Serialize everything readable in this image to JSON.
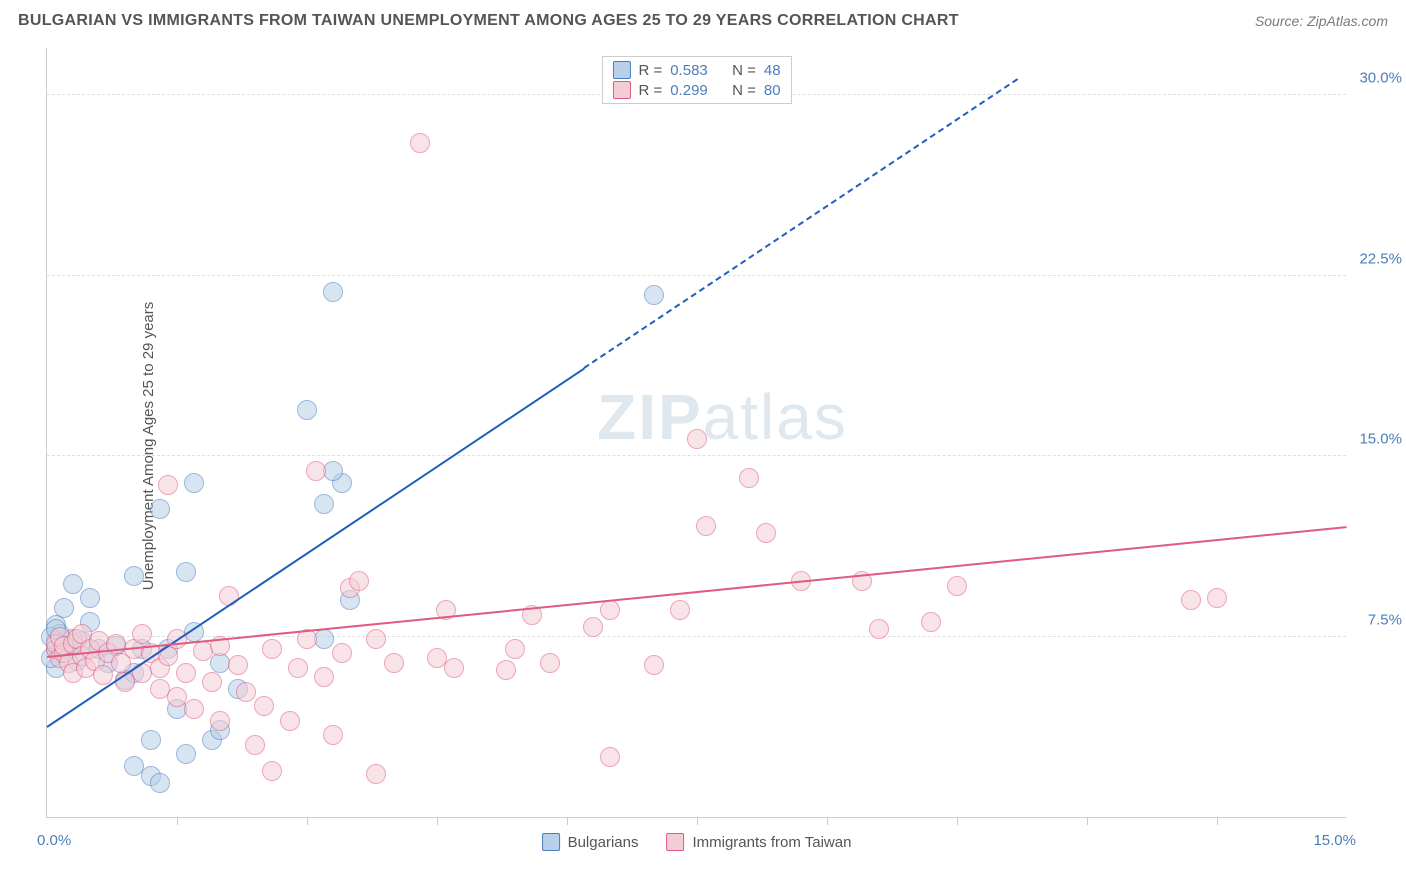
{
  "header": {
    "title": "BULGARIAN VS IMMIGRANTS FROM TAIWAN UNEMPLOYMENT AMONG AGES 25 TO 29 YEARS CORRELATION CHART",
    "source": "Source: ZipAtlas.com"
  },
  "chart": {
    "type": "scatter",
    "ylabel": "Unemployment Among Ages 25 to 29 years",
    "xlim": [
      0,
      15
    ],
    "ylim": [
      0,
      32
    ],
    "yticks": [
      {
        "value": 7.5,
        "label": "7.5%"
      },
      {
        "value": 15.0,
        "label": "15.0%"
      },
      {
        "value": 22.5,
        "label": "22.5%"
      },
      {
        "value": 30.0,
        "label": "30.0%"
      }
    ],
    "xticks_label": {
      "left": "0.0%",
      "right": "15.0%"
    },
    "xticks_minor": [
      1.5,
      3.0,
      4.5,
      6.0,
      7.5,
      9.0,
      10.5,
      12.0,
      13.5
    ],
    "background_color": "#ffffff",
    "grid_color": "#e0e0e0",
    "axis_color": "#cccccc",
    "ytick_color": "#4a7ebb",
    "marker_radius": 10,
    "marker_opacity": 0.55,
    "watermark": "ZIPatlas",
    "series": [
      {
        "key": "bulgarians",
        "label": "Bulgarians",
        "color_fill": "#b8d0ea",
        "color_stroke": "#4a7ebb",
        "r": 0.583,
        "n": 48,
        "trend": {
          "x1": 0,
          "y1": 3.7,
          "x2": 6.2,
          "y2": 18.6,
          "style": "solid",
          "width": 2.5,
          "color": "#1f5fbf",
          "ext_x1": 6.2,
          "ext_y1": 18.6,
          "ext_x2": 11.2,
          "ext_y2": 30.6,
          "ext_style": "dashed"
        },
        "points": [
          [
            0.1,
            7.0
          ],
          [
            0.1,
            7.3
          ],
          [
            0.1,
            6.2
          ],
          [
            0.1,
            8.0
          ],
          [
            0.15,
            7.6
          ],
          [
            0.15,
            6.8
          ],
          [
            0.2,
            8.7
          ],
          [
            0.2,
            7.1
          ],
          [
            0.25,
            7.0
          ],
          [
            0.3,
            9.7
          ],
          [
            0.3,
            7.4
          ],
          [
            0.35,
            6.5
          ],
          [
            0.4,
            7.3
          ],
          [
            0.5,
            8.1
          ],
          [
            0.5,
            9.1
          ],
          [
            0.6,
            7.0
          ],
          [
            0.7,
            6.4
          ],
          [
            0.8,
            7.1
          ],
          [
            0.9,
            5.7
          ],
          [
            1.0,
            6.0
          ],
          [
            1.0,
            10.0
          ],
          [
            1.0,
            2.1
          ],
          [
            1.1,
            7.0
          ],
          [
            1.2,
            1.7
          ],
          [
            1.2,
            3.2
          ],
          [
            1.3,
            1.4
          ],
          [
            1.3,
            12.8
          ],
          [
            1.4,
            7.0
          ],
          [
            1.5,
            4.5
          ],
          [
            1.6,
            2.6
          ],
          [
            1.6,
            10.2
          ],
          [
            1.7,
            13.9
          ],
          [
            1.7,
            7.7
          ],
          [
            1.9,
            3.2
          ],
          [
            2.0,
            6.4
          ],
          [
            2.0,
            3.6
          ],
          [
            2.2,
            5.3
          ],
          [
            3.3,
            21.8
          ],
          [
            3.2,
            13.0
          ],
          [
            3.0,
            16.9
          ],
          [
            3.4,
            13.9
          ],
          [
            3.3,
            14.4
          ],
          [
            3.2,
            7.4
          ],
          [
            3.5,
            9.0
          ],
          [
            7.0,
            21.7
          ],
          [
            0.05,
            7.5
          ],
          [
            0.05,
            6.6
          ],
          [
            0.1,
            7.8
          ]
        ]
      },
      {
        "key": "immigrants_taiwan",
        "label": "Immigrants from Taiwan",
        "color_fill": "#f3cdd6",
        "color_stroke": "#e15a7f",
        "r": 0.299,
        "n": 80,
        "trend": {
          "x1": 0,
          "y1": 6.6,
          "x2": 15,
          "y2": 12.0,
          "style": "solid",
          "width": 2.5,
          "color": "#e15a7f"
        },
        "points": [
          [
            0.1,
            7.0
          ],
          [
            0.1,
            7.2
          ],
          [
            0.15,
            6.6
          ],
          [
            0.15,
            7.5
          ],
          [
            0.2,
            6.8
          ],
          [
            0.2,
            7.1
          ],
          [
            0.25,
            6.4
          ],
          [
            0.3,
            7.2
          ],
          [
            0.3,
            6.0
          ],
          [
            0.35,
            7.4
          ],
          [
            0.4,
            6.7
          ],
          [
            0.4,
            7.6
          ],
          [
            0.45,
            6.2
          ],
          [
            0.5,
            7.0
          ],
          [
            0.55,
            6.5
          ],
          [
            0.6,
            7.3
          ],
          [
            0.65,
            5.9
          ],
          [
            0.7,
            6.8
          ],
          [
            0.8,
            7.2
          ],
          [
            0.85,
            6.4
          ],
          [
            0.9,
            5.6
          ],
          [
            1.0,
            7.0
          ],
          [
            1.1,
            6.0
          ],
          [
            1.1,
            7.6
          ],
          [
            1.2,
            6.8
          ],
          [
            1.3,
            6.2
          ],
          [
            1.3,
            5.3
          ],
          [
            1.4,
            13.8
          ],
          [
            1.4,
            6.7
          ],
          [
            1.5,
            5.0
          ],
          [
            1.5,
            7.4
          ],
          [
            1.6,
            6.0
          ],
          [
            1.7,
            4.5
          ],
          [
            1.8,
            6.9
          ],
          [
            1.9,
            5.6
          ],
          [
            2.0,
            7.1
          ],
          [
            2.0,
            4.0
          ],
          [
            2.1,
            9.2
          ],
          [
            2.2,
            6.3
          ],
          [
            2.3,
            5.2
          ],
          [
            2.4,
            3.0
          ],
          [
            2.5,
            4.6
          ],
          [
            2.6,
            7.0
          ],
          [
            2.6,
            1.9
          ],
          [
            2.8,
            4.0
          ],
          [
            2.9,
            6.2
          ],
          [
            3.0,
            7.4
          ],
          [
            3.1,
            14.4
          ],
          [
            3.2,
            5.8
          ],
          [
            3.3,
            3.4
          ],
          [
            3.4,
            6.8
          ],
          [
            3.5,
            9.5
          ],
          [
            3.6,
            9.8
          ],
          [
            3.8,
            7.4
          ],
          [
            3.8,
            1.8
          ],
          [
            4.0,
            6.4
          ],
          [
            4.3,
            28.0
          ],
          [
            4.5,
            6.6
          ],
          [
            4.6,
            8.6
          ],
          [
            4.7,
            6.2
          ],
          [
            5.3,
            6.1
          ],
          [
            5.4,
            7.0
          ],
          [
            5.6,
            8.4
          ],
          [
            5.8,
            6.4
          ],
          [
            6.3,
            7.9
          ],
          [
            6.5,
            8.6
          ],
          [
            6.5,
            2.5
          ],
          [
            7.0,
            6.3
          ],
          [
            7.3,
            8.6
          ],
          [
            7.5,
            15.7
          ],
          [
            7.6,
            12.1
          ],
          [
            8.1,
            14.1
          ],
          [
            8.3,
            11.8
          ],
          [
            8.7,
            9.8
          ],
          [
            9.4,
            9.8
          ],
          [
            9.6,
            7.8
          ],
          [
            10.2,
            8.1
          ],
          [
            10.5,
            9.6
          ],
          [
            13.2,
            9.0
          ],
          [
            13.5,
            9.1
          ]
        ]
      }
    ],
    "legend_top": {
      "r_label": "R =",
      "n_label": "N ="
    }
  }
}
